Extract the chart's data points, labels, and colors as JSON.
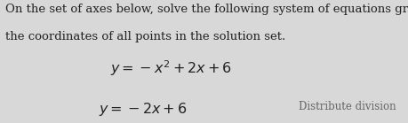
{
  "background_color": "#d8d8d8",
  "header_text": "On the set of axes below, solve the following system of equations graphically and state",
  "header_text2": "the coordinates of all points in the solution set.",
  "eq1": "$y = -x^2 + 2x + 6$",
  "eq2": "$y = -2x + 6$",
  "side_note": "Distribute division",
  "header_fontsize": 9.5,
  "eq_fontsize": 11.5,
  "note_fontsize": 8.5,
  "text_color": "#222222",
  "note_color": "#666666"
}
